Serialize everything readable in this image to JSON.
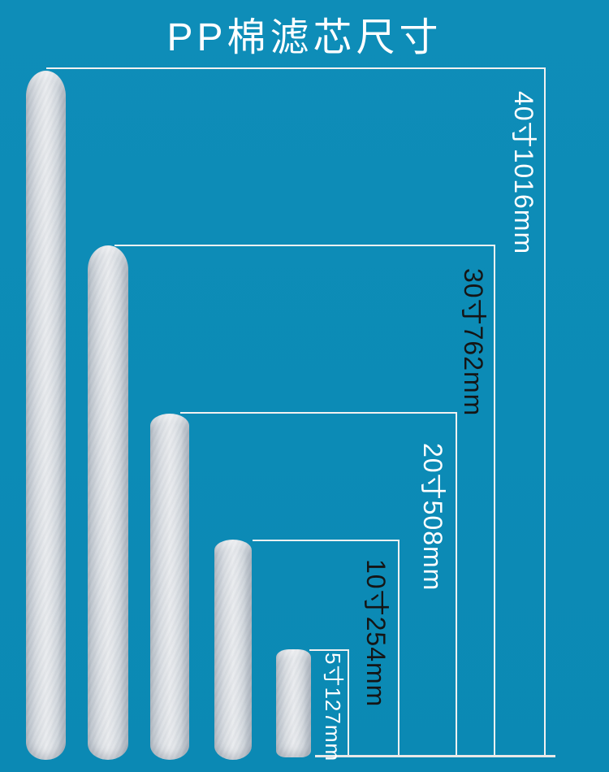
{
  "title": "PP棉滤芯尺寸",
  "colors": {
    "background": "#0c8bb6",
    "dimension_line": "#f1f1f1",
    "label_light": "#ffffff",
    "label_dark": "#151515",
    "cartridge_body": "#dde1e6"
  },
  "filters": [
    {
      "size_inch": "40寸",
      "length_mm": "1016mm",
      "label": "40寸1016mm",
      "label_color": "#ffffff"
    },
    {
      "size_inch": "30寸",
      "length_mm": "762mm",
      "label": "30寸762mm",
      "label_color": "#151515"
    },
    {
      "size_inch": "20寸",
      "length_mm": "508mm",
      "label": "20寸508mm",
      "label_color": "#ffffff"
    },
    {
      "size_inch": "10寸",
      "length_mm": "254mm",
      "label": "10寸254mm",
      "label_color": "#151515"
    },
    {
      "size_inch": "5寸",
      "length_mm": "127mm",
      "label": "5寸127mm",
      "label_color": "#ffffff"
    }
  ]
}
